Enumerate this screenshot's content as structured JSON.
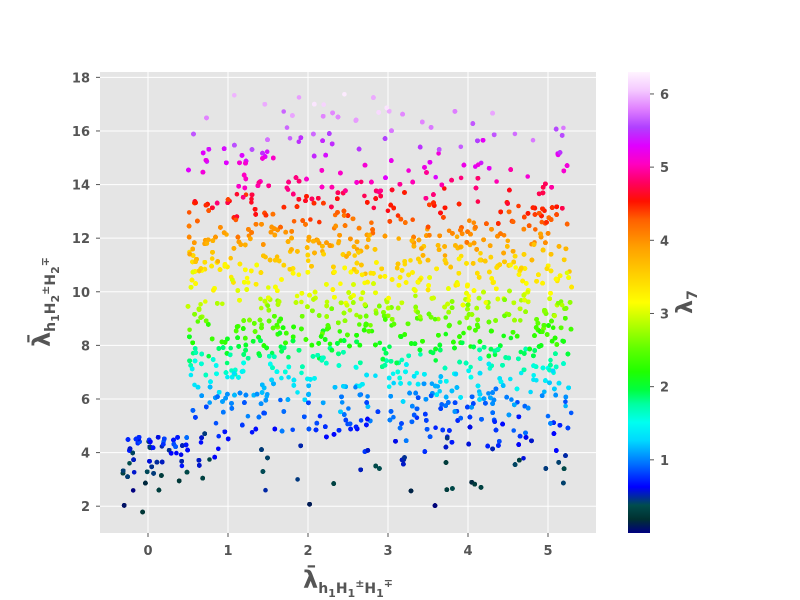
{
  "chart_data": {
    "type": "scatter",
    "style": "ggplot",
    "colormap": "gist_ncar",
    "xlabel": "λ̄h1H1±H1∓",
    "xlabel_parts": {
      "base": "λ̄",
      "sub1": "h",
      "sub1_index": "1",
      "sub2": "H",
      "sub2_index": "1",
      "sub2_sup": "±",
      "sub3": "H",
      "sub3_index": "1",
      "sub3_sup": "∓"
    },
    "ylabel": "λ̄h1H2±H2∓",
    "ylabel_parts": {
      "base": "λ̄",
      "sub1": "h",
      "sub1_index": "1",
      "sub2": "H",
      "sub2_index": "2",
      "sub2_sup": "±",
      "sub3": "H",
      "sub3_index": "2",
      "sub3_sup": "∓"
    },
    "colorbar_label": "λ7",
    "colorbar_label_parts": {
      "base": "λ",
      "sub": "7"
    },
    "xlim": [
      -0.6,
      5.6
    ],
    "ylim": [
      1.0,
      18.2
    ],
    "clim": [
      0.0,
      6.3
    ],
    "x_ticks": [
      0,
      1,
      2,
      3,
      4,
      5
    ],
    "y_ticks": [
      2,
      4,
      6,
      8,
      10,
      12,
      14,
      16,
      18
    ],
    "colorbar_ticks": [
      1,
      2,
      3,
      4,
      5,
      6
    ],
    "grid": true,
    "background": "#e5e5e5",
    "grid_color": "#ffffff",
    "point_count": 6000,
    "point_regions": [
      {
        "x_range": [
          0.5,
          5.3
        ],
        "y_range": [
          1.8,
          17.4
        ],
        "share": 0.96,
        "note": "dense main band"
      },
      {
        "x_range": [
          -0.35,
          0.5
        ],
        "y_range": [
          1.7,
          4.6
        ],
        "share": 0.04,
        "note": "sparse low-x tail"
      }
    ],
    "color_vs_y": [
      [
        2.0,
        0.1
      ],
      [
        3.0,
        0.3
      ],
      [
        4.0,
        0.6
      ],
      [
        5.0,
        0.8
      ],
      [
        6.0,
        1.05
      ],
      [
        7.0,
        1.5
      ],
      [
        8.0,
        2.05
      ],
      [
        9.0,
        2.6
      ],
      [
        10.0,
        3.05
      ],
      [
        11.0,
        3.45
      ],
      [
        12.0,
        3.95
      ],
      [
        13.0,
        4.45
      ],
      [
        14.0,
        4.9
      ],
      [
        15.0,
        5.3
      ],
      [
        16.0,
        5.65
      ],
      [
        17.0,
        6.0
      ]
    ]
  },
  "colorbar_stops": [
    [
      0.0,
      "#000080"
    ],
    [
      0.03,
      "#003030"
    ],
    [
      0.06,
      "#004d4d"
    ],
    [
      0.1,
      "#0000ff"
    ],
    [
      0.15,
      "#0070ff"
    ],
    [
      0.2,
      "#00d8ff"
    ],
    [
      0.24,
      "#00fff0"
    ],
    [
      0.28,
      "#00ffa0"
    ],
    [
      0.31,
      "#00ff40"
    ],
    [
      0.35,
      "#20ff00"
    ],
    [
      0.4,
      "#60ff00"
    ],
    [
      0.45,
      "#b0ff00"
    ],
    [
      0.5,
      "#ffff00"
    ],
    [
      0.56,
      "#ffd000"
    ],
    [
      0.62,
      "#ffa000"
    ],
    [
      0.68,
      "#ff6000"
    ],
    [
      0.72,
      "#ff1000"
    ],
    [
      0.76,
      "#ff0060"
    ],
    [
      0.8,
      "#ff00c0"
    ],
    [
      0.84,
      "#e000ff"
    ],
    [
      0.88,
      "#b040ff"
    ],
    [
      0.92,
      "#e080ff"
    ],
    [
      0.96,
      "#f4c8ff"
    ],
    [
      1.0,
      "#fff4ff"
    ]
  ]
}
